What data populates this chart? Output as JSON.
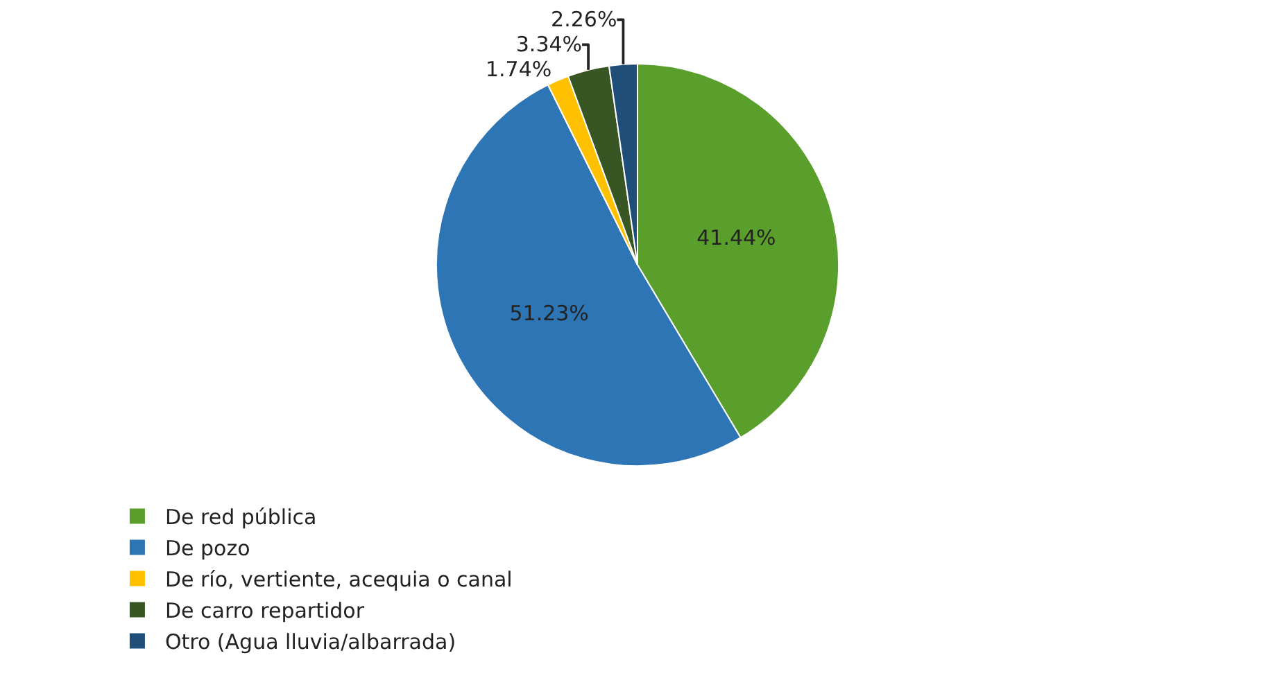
{
  "chart_data": {
    "type": "pie",
    "categories": [
      "De red pública",
      "De pozo",
      "De río, vertiente, acequia o canal",
      "De carro repartidor",
      "Otro (Agua lluvia/albarrada)"
    ],
    "values": [
      41.44,
      51.23,
      1.74,
      3.34,
      2.26
    ],
    "value_labels": [
      "41.44%",
      "51.23%",
      "1.74%",
      "3.34%",
      "2.26%"
    ],
    "colors": [
      "#5a9f2c",
      "#2e75b6",
      "#ffc000",
      "#375623",
      "#1f4e79"
    ],
    "legend": "bottom"
  }
}
